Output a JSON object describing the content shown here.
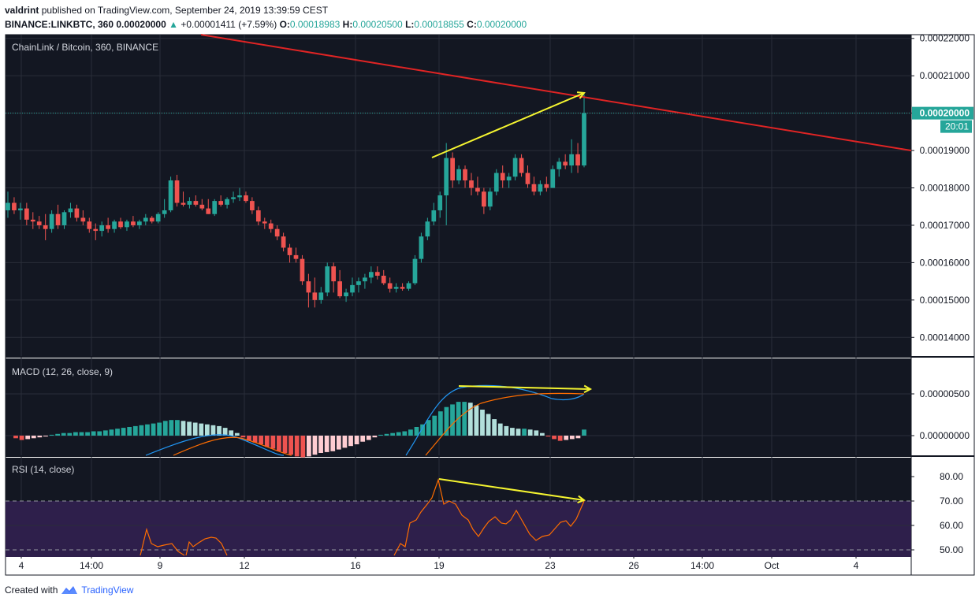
{
  "header": {
    "author": "valdrint",
    "published_text": "published on TradingView.com, September 24, 2019 13:39:59 CEST",
    "symbol": "BINANCE:LINKBTC, 360",
    "last": "0.00020000",
    "change": "+0.00001411 (+7.59%)",
    "o_label": "O:",
    "o_value": "0.00018983",
    "h_label": "H:",
    "h_value": "0.00020500",
    "l_label": "L:",
    "l_value": "0.00018855",
    "c_label": "C:",
    "c_value": "0.00020000"
  },
  "footer": {
    "created_with": "Created with",
    "brand": "TradingView"
  },
  "colors": {
    "background": "#131722",
    "grid": "#2a2e39",
    "up": "#26a69a",
    "down": "#ef5350",
    "trendline": "#e02424",
    "annotation": "#f5f530",
    "macd": "#2196f3",
    "signal": "#ff6d00",
    "rsi": "#ff6d00",
    "rsi_band": "#2e1f4b"
  },
  "chart_data": [
    {
      "type": "candlestick",
      "title": "ChainLink / Bitcoin, 360, BINANCE",
      "ylim": [
        0.000135,
        0.000221
      ],
      "y_ticks": [
        "0.00014000",
        "0.00015000",
        "0.00016000",
        "0.00017000",
        "0.00018000",
        "0.00019000",
        "0.00020000",
        "0.00021000",
        "0.00022000"
      ],
      "x_ticks": [
        "4",
        "14:00",
        "9",
        "12",
        "16",
        "19",
        "23",
        "26",
        "14:00",
        "Oct",
        "4"
      ],
      "last_price_label": "0.00020000",
      "countdown_label": "20:01",
      "ohlc": [
        [
          0.000174,
          0.000179,
          0.000172,
          0.000176
        ],
        [
          0.000176,
          0.0001775,
          0.000173,
          0.000174
        ],
        [
          0.000174,
          0.000176,
          0.0001715,
          0.0001745
        ],
        [
          0.0001745,
          0.000176,
          0.00017,
          0.0001715
        ],
        [
          0.0001715,
          0.0001735,
          0.000169,
          0.000171
        ],
        [
          0.000171,
          0.0001725,
          0.000169,
          0.00017
        ],
        [
          0.00017,
          0.000173,
          0.000166,
          0.000169
        ],
        [
          0.000169,
          0.000174,
          0.000168,
          0.000173
        ],
        [
          0.000173,
          0.0001755,
          0.000169,
          0.00017
        ],
        [
          0.00017,
          0.000174,
          0.000169,
          0.0001735
        ],
        [
          0.0001735,
          0.000176,
          0.000172,
          0.0001745
        ],
        [
          0.0001745,
          0.0001755,
          0.000171,
          0.000172
        ],
        [
          0.000172,
          0.000174,
          0.00017,
          0.000171
        ],
        [
          0.000171,
          0.000172,
          0.000168,
          0.000169
        ],
        [
          0.000169,
          0.0001705,
          0.000166,
          0.0001685
        ],
        [
          0.0001685,
          0.000171,
          0.000167,
          0.00017
        ],
        [
          0.00017,
          0.000172,
          0.000168,
          0.000169
        ],
        [
          0.000169,
          0.0001715,
          0.000168,
          0.000171
        ],
        [
          0.000171,
          0.000172,
          0.000169,
          0.0001695
        ],
        [
          0.0001695,
          0.0001715,
          0.0001685,
          0.000171
        ],
        [
          0.000171,
          0.0001725,
          0.0001695,
          0.00017
        ],
        [
          0.00017,
          0.0001715,
          0.000169,
          0.000171
        ],
        [
          0.000171,
          0.000173,
          0.00017,
          0.000172
        ],
        [
          0.000172,
          0.0001725,
          0.0001705,
          0.000171
        ],
        [
          0.000171,
          0.0001735,
          0.0001705,
          0.000173
        ],
        [
          0.000173,
          0.000177,
          0.000172,
          0.000174
        ],
        [
          0.000174,
          0.000183,
          0.0001735,
          0.000182
        ],
        [
          0.000182,
          0.0001835,
          0.000175,
          0.000176
        ],
        [
          0.000176,
          0.000179,
          0.000175,
          0.0001755
        ],
        [
          0.0001755,
          0.0001775,
          0.0001745,
          0.0001765
        ],
        [
          0.0001765,
          0.000178,
          0.000175,
          0.0001755
        ],
        [
          0.0001755,
          0.000177,
          0.000174,
          0.0001745
        ],
        [
          0.0001745,
          0.000177,
          0.000173,
          0.000173
        ],
        [
          0.000173,
          0.000177,
          0.0001725,
          0.0001765
        ],
        [
          0.0001765,
          0.000178,
          0.000175,
          0.0001755
        ],
        [
          0.0001755,
          0.0001775,
          0.0001745,
          0.000177
        ],
        [
          0.000177,
          0.000179,
          0.000176,
          0.0001775
        ],
        [
          0.0001775,
          0.00018,
          0.0001765,
          0.000178
        ],
        [
          0.000178,
          0.000179,
          0.000176,
          0.0001765
        ],
        [
          0.0001765,
          0.0001775,
          0.000173,
          0.000174
        ],
        [
          0.000174,
          0.000175,
          0.00017,
          0.000171
        ],
        [
          0.000171,
          0.000172,
          0.000169,
          0.0001705
        ],
        [
          0.0001705,
          0.0001715,
          0.000168,
          0.000169
        ],
        [
          0.000169,
          0.00017,
          0.000166,
          0.000167
        ],
        [
          0.000167,
          0.000168,
          0.000163,
          0.000164
        ],
        [
          0.000164,
          0.000165,
          0.00016,
          0.000162
        ],
        [
          0.000162,
          0.000164,
          0.00016,
          0.000161
        ],
        [
          0.000161,
          0.000162,
          0.000154,
          0.000155
        ],
        [
          0.000155,
          0.000157,
          0.000148,
          0.000152
        ],
        [
          0.000152,
          0.000156,
          0.000148,
          0.00015
        ],
        [
          0.00015,
          0.0001535,
          0.000149,
          0.000152
        ],
        [
          0.000152,
          0.00016,
          0.000151,
          0.000159
        ],
        [
          0.000159,
          0.00016,
          0.000152,
          0.000155
        ],
        [
          0.000155,
          0.000158,
          0.0001505,
          0.000151
        ],
        [
          0.000151,
          0.000153,
          0.0001495,
          0.000152
        ],
        [
          0.000152,
          0.000156,
          0.000151,
          0.000154
        ],
        [
          0.000154,
          0.000156,
          0.000152,
          0.000155
        ],
        [
          0.000155,
          0.000157,
          0.000153,
          0.000156
        ],
        [
          0.000156,
          0.000159,
          0.0001545,
          0.0001575
        ],
        [
          0.0001575,
          0.000159,
          0.0001555,
          0.0001565
        ],
        [
          0.0001565,
          0.000158,
          0.000154,
          0.0001545
        ],
        [
          0.0001545,
          0.000156,
          0.000152,
          0.000153
        ],
        [
          0.000153,
          0.0001545,
          0.000152,
          0.0001535
        ],
        [
          0.0001535,
          0.0001545,
          0.0001525,
          0.000153
        ],
        [
          0.000153,
          0.000155,
          0.0001525,
          0.0001545
        ],
        [
          0.0001545,
          0.000162,
          0.000154,
          0.000161
        ],
        [
          0.000161,
          0.000168,
          0.00016,
          0.000167
        ],
        [
          0.000167,
          0.000172,
          0.000166,
          0.000171
        ],
        [
          0.000171,
          0.000176,
          0.00017,
          0.000174
        ],
        [
          0.000174,
          0.000179,
          0.000172,
          0.000178
        ],
        [
          0.000178,
          0.000192,
          0.00017,
          0.000188
        ],
        [
          0.000188,
          0.0001895,
          0.00018,
          0.000182
        ],
        [
          0.000182,
          0.000186,
          0.000181,
          0.000185
        ],
        [
          0.000185,
          0.000186,
          0.00018,
          0.000182
        ],
        [
          0.000182,
          0.000184,
          0.000178,
          0.00018
        ],
        [
          0.00018,
          0.000183,
          0.000178,
          0.000179
        ],
        [
          0.000179,
          0.00018,
          0.000173,
          0.000175
        ],
        [
          0.000175,
          0.00018,
          0.000174,
          0.000179
        ],
        [
          0.000179,
          0.000185,
          0.000178,
          0.000184
        ],
        [
          0.000184,
          0.000186,
          0.00018,
          0.000182
        ],
        [
          0.000182,
          0.000184,
          0.00018,
          0.000183
        ],
        [
          0.000183,
          0.000189,
          0.000182,
          0.000188
        ],
        [
          0.000188,
          0.000189,
          0.000183,
          0.000184
        ],
        [
          0.000184,
          0.000186,
          0.00018,
          0.000181
        ],
        [
          0.000181,
          0.000183,
          0.000178,
          0.000179
        ],
        [
          0.000179,
          0.000182,
          0.000178,
          0.000181
        ],
        [
          0.000181,
          0.000183,
          0.000179,
          0.00018
        ],
        [
          0.00018,
          0.000186,
          0.00018,
          0.000185
        ],
        [
          0.000185,
          0.000188,
          0.000183,
          0.000187
        ],
        [
          0.000187,
          0.000189,
          0.000185,
          0.000186
        ],
        [
          0.000186,
          0.000193,
          0.000184,
          0.000189
        ],
        [
          0.000189,
          0.000192,
          0.000184,
          0.000186
        ],
        [
          0.000186,
          0.000205,
          0.0001855,
          0.0002
        ]
      ]
    },
    {
      "type": "line",
      "title": "MACD (12, 26, close, 9)",
      "y_ticks": [
        "0.00000000",
        "0.00000500"
      ],
      "histogram": [
        -0.3,
        -0.5,
        -0.4,
        -0.3,
        -0.2,
        -0.1,
        0.1,
        0.2,
        0.3,
        0.3,
        0.4,
        0.4,
        0.4,
        0.5,
        0.5,
        0.6,
        0.7,
        0.8,
        0.9,
        1.0,
        1.1,
        1.2,
        1.3,
        1.4,
        1.5,
        1.7,
        1.8,
        1.8,
        1.7,
        1.6,
        1.5,
        1.4,
        1.3,
        1.2,
        1.1,
        0.9,
        0.6,
        0.3,
        -0.2,
        -0.6,
        -0.8,
        -1.0,
        -1.3,
        -1.5,
        -1.8,
        -2.0,
        -2.2,
        -2.4,
        -2.5,
        -2.4,
        -2.2,
        -2.0,
        -1.9,
        -1.8,
        -1.6,
        -1.4,
        -1.2,
        -1.0,
        -0.7,
        -0.5,
        -0.2,
        0.1,
        0.2,
        0.3,
        0.4,
        0.5,
        0.7,
        1.0,
        1.3,
        1.8,
        2.3,
        2.8,
        3.3,
        3.6,
        3.9,
        3.9,
        3.8,
        3.5,
        3.0,
        2.5,
        1.9,
        1.4,
        1.1,
        0.9,
        0.8,
        0.8,
        0.7,
        0.6,
        0.3,
        -0.1,
        -0.4,
        -0.6,
        -0.5,
        -0.4,
        -0.3,
        0.7
      ],
      "series": []
    },
    {
      "type": "line",
      "title": "RSI (14, close)",
      "y_ticks": [
        "50.00",
        "60.00",
        "70.00",
        "80.00"
      ],
      "series": []
    }
  ]
}
